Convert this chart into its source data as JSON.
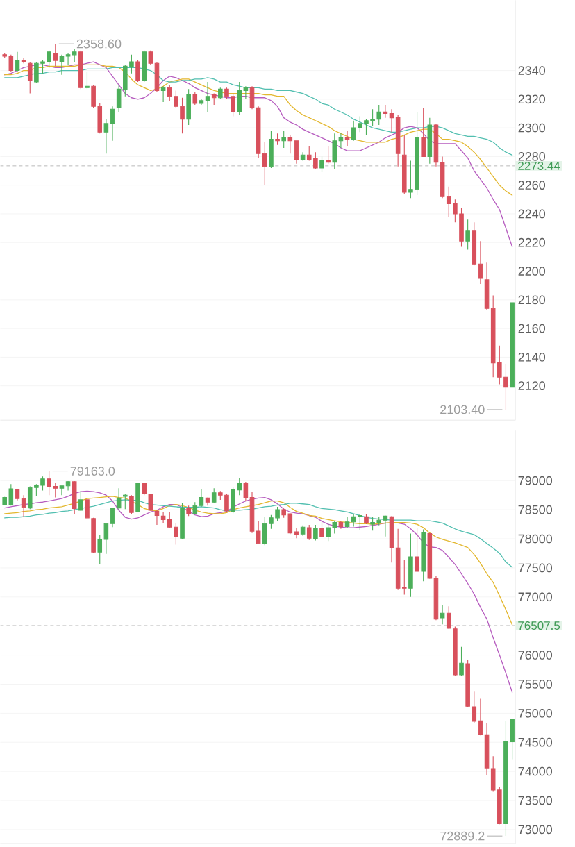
{
  "chart_data": [
    {
      "type": "candlestick",
      "categories": [
        null,
        null,
        null,
        null,
        null,
        null,
        null,
        null,
        null,
        null,
        null,
        null,
        null,
        null,
        null,
        null,
        null,
        null,
        null,
        null,
        null,
        null,
        null,
        null,
        null,
        null,
        null,
        null,
        null,
        null,
        null,
        null,
        null,
        null,
        null,
        null,
        null,
        null,
        null,
        null,
        null,
        null,
        null,
        null,
        null,
        null,
        null,
        null,
        null,
        null,
        null,
        null,
        null,
        null,
        null,
        null,
        null,
        null,
        null,
        null,
        null,
        null,
        null,
        null,
        null,
        null,
        null,
        null,
        null,
        null,
        null,
        null,
        null,
        null,
        null,
        null,
        null,
        null,
        null,
        null,
        null
      ],
      "ohlc": [
        [
          2351,
          2352,
          2349,
          2350
        ],
        [
          2350,
          2351,
          2339,
          2340
        ],
        [
          2340,
          2353,
          2339,
          2347
        ],
        [
          2347,
          2349,
          2345,
          2346
        ],
        [
          2345,
          2346,
          2324,
          2333
        ],
        [
          2332,
          2346,
          2331,
          2345
        ],
        [
          2345,
          2347,
          2338,
          2346
        ],
        [
          2346,
          2354,
          2342,
          2353
        ],
        [
          2352,
          2358.6,
          2343,
          2347
        ],
        [
          2346,
          2351,
          2337,
          2350
        ],
        [
          2350,
          2352,
          2344,
          2351
        ],
        [
          2351,
          2355,
          2346,
          2353
        ],
        [
          2353,
          2354,
          2327,
          2328
        ],
        [
          2328,
          2339,
          2327,
          2329
        ],
        [
          2329,
          2330,
          2314,
          2315
        ],
        [
          2315,
          2317,
          2296,
          2297
        ],
        [
          2297,
          2306,
          2282,
          2303
        ],
        [
          2303,
          2315,
          2291,
          2313
        ],
        [
          2314,
          2330,
          2311,
          2327
        ],
        [
          2327,
          2344,
          2322,
          2343
        ],
        [
          2343,
          2351,
          2338,
          2346
        ],
        [
          2346,
          2347,
          2332,
          2333
        ],
        [
          2333,
          2354,
          2332,
          2353
        ],
        [
          2353,
          2354,
          2344,
          2345
        ],
        [
          2345,
          2346,
          2325,
          2326
        ],
        [
          2326,
          2329,
          2318,
          2328
        ],
        [
          2328,
          2330,
          2319,
          2322
        ],
        [
          2322,
          2326,
          2314,
          2315
        ],
        [
          2315,
          2321,
          2296,
          2306
        ],
        [
          2306,
          2327,
          2302,
          2323
        ],
        [
          2323,
          2325,
          2316,
          2317
        ],
        [
          2317,
          2320,
          2316,
          2319
        ],
        [
          2319,
          2332,
          2311,
          2322
        ],
        [
          2323,
          2324,
          2316,
          2321
        ],
        [
          2321,
          2328,
          2320,
          2327
        ],
        [
          2327,
          2328,
          2320,
          2322
        ],
        [
          2322,
          2324,
          2308,
          2311
        ],
        [
          2311,
          2332,
          2309,
          2326
        ],
        [
          2326,
          2329,
          2320,
          2328
        ],
        [
          2328,
          2329,
          2313,
          2314
        ],
        [
          2314,
          2315,
          2279,
          2282
        ],
        [
          2282,
          2290,
          2260,
          2273
        ],
        [
          2273,
          2298,
          2272,
          2292
        ],
        [
          2292,
          2296,
          2288,
          2291
        ],
        [
          2291,
          2298,
          2286,
          2293
        ],
        [
          2293,
          2295,
          2282,
          2291
        ],
        [
          2291,
          2291,
          2275,
          2278
        ],
        [
          2278,
          2283,
          2277,
          2281
        ],
        [
          2281,
          2287,
          2277,
          2278
        ],
        [
          2279,
          2283,
          2271,
          2272
        ],
        [
          2272,
          2280,
          2269,
          2277
        ],
        [
          2277,
          2287,
          2275,
          2276
        ],
        [
          2276,
          2296,
          2271,
          2291
        ],
        [
          2291,
          2296,
          2286,
          2293
        ],
        [
          2293,
          2298,
          2287,
          2292
        ],
        [
          2292,
          2305,
          2291,
          2300
        ],
        [
          2300,
          2308,
          2297,
          2303
        ],
        [
          2303,
          2306,
          2295,
          2305
        ],
        [
          2305,
          2313,
          2301,
          2306
        ],
        [
          2306,
          2316,
          2302,
          2311
        ],
        [
          2311,
          2316,
          2307,
          2310
        ],
        [
          2310,
          2313,
          2297,
          2307
        ],
        [
          2307,
          2309,
          2273,
          2282
        ],
        [
          2281,
          2295,
          2254,
          2255
        ],
        [
          2255,
          2277,
          2251,
          2257
        ],
        [
          2257,
          2311,
          2253,
          2293
        ],
        [
          2293,
          2314,
          2280,
          2280
        ],
        [
          2280,
          2307,
          2275,
          2302
        ],
        [
          2302,
          2303,
          2273,
          2276
        ],
        [
          2276,
          2280,
          2251,
          2252
        ],
        [
          2252,
          2259,
          2238,
          2247
        ],
        [
          2247,
          2250,
          2234,
          2240
        ],
        [
          2240,
          2244,
          2217,
          2221
        ],
        [
          2221,
          2236,
          2215,
          2228
        ],
        [
          2228,
          2234,
          2204,
          2205
        ],
        [
          2205,
          2221,
          2191,
          2195
        ],
        [
          2194,
          2206,
          2173,
          2174
        ],
        [
          2174,
          2183,
          2126,
          2136
        ],
        [
          2136,
          2148,
          2121,
          2126
        ],
        [
          2126,
          2135,
          2103.4,
          2119
        ],
        [
          2119,
          2178,
          2119,
          2178
        ]
      ],
      "colors": [
        "#d8505c",
        "#d8505c",
        "#4caf5a",
        "#d8505c",
        "#d8505c",
        "#4caf5a",
        "#4caf5a",
        "#4caf5a",
        "#d8505c",
        "#4caf5a",
        "#4caf5a",
        "#4caf5a",
        "#d8505c",
        "#4caf5a",
        "#d8505c",
        "#d8505c",
        "#4caf5a",
        "#4caf5a",
        "#4caf5a",
        "#4caf5a",
        "#4caf5a",
        "#d8505c",
        "#4caf5a",
        "#d8505c",
        "#d8505c",
        "#4caf5a",
        "#d8505c",
        "#d8505c",
        "#d8505c",
        "#4caf5a",
        "#d8505c",
        "#4caf5a",
        "#4caf5a",
        "#d8505c",
        "#4caf5a",
        "#d8505c",
        "#d8505c",
        "#4caf5a",
        "#4caf5a",
        "#d8505c",
        "#d8505c",
        "#d8505c",
        "#4caf5a",
        "#d8505c",
        "#4caf5a",
        "#d8505c",
        "#d8505c",
        "#4caf5a",
        "#d8505c",
        "#d8505c",
        "#4caf5a",
        "#d8505c",
        "#4caf5a",
        "#4caf5a",
        "#d8505c",
        "#4caf5a",
        "#4caf5a",
        "#4caf5a",
        "#4caf5a",
        "#4caf5a",
        "#d8505c",
        "#d8505c",
        "#d8505c",
        "#d8505c",
        "#4caf5a",
        "#4caf5a",
        "#d8505c",
        "#4caf5a",
        "#d8505c",
        "#d8505c",
        "#d8505c",
        "#d8505c",
        "#d8505c",
        "#4caf5a",
        "#d8505c",
        "#d8505c",
        "#d8505c",
        "#d8505c",
        "#d8505c",
        "#d8505c",
        "#4caf5a"
      ],
      "series": [
        {
          "type": "line",
          "color": "#b65cbf",
          "values": [
            2337,
            2338,
            2340,
            2342,
            2343,
            2344,
            2344,
            2343,
            2342,
            2342,
            2343,
            2344,
            2344,
            2345,
            2346,
            2344,
            2342,
            2336,
            2330,
            2324,
            2321,
            2320,
            2321,
            2324,
            2328,
            2333,
            2336,
            2335,
            2333,
            2331,
            2328,
            2326,
            2324,
            2323,
            2322,
            2321,
            2321,
            2322,
            2322,
            2321,
            2321,
            2321,
            2319,
            2315,
            2307,
            2304,
            2302,
            2299,
            2297,
            2295,
            2293,
            2291,
            2289,
            2286,
            2284,
            2284,
            2284,
            2286,
            2288,
            2290,
            2293,
            2295,
            2297,
            2300,
            2301,
            2300,
            2296,
            2291,
            2289,
            2289,
            2289,
            2289,
            2284,
            2279,
            2270,
            2264,
            2258,
            2250,
            2243,
            2230,
            2217
          ]
        },
        {
          "type": "line",
          "color": "#e3b72e",
          "values": [
            2337,
            2337,
            2338,
            2340,
            2340,
            2342,
            2342,
            2343,
            2343,
            2343,
            2343,
            2343,
            2344,
            2344,
            2344,
            2344,
            2343,
            2343,
            2342,
            2339,
            2334,
            2330,
            2328,
            2326,
            2327,
            2329,
            2332,
            2333,
            2334,
            2334,
            2332,
            2330,
            2328,
            2326,
            2325,
            2324,
            2324,
            2324,
            2324,
            2324,
            2324,
            2323,
            2323,
            2322,
            2322,
            2316,
            2312,
            2309,
            2307,
            2305,
            2303,
            2301,
            2298,
            2296,
            2294,
            2292,
            2291,
            2290,
            2290,
            2290,
            2290,
            2292,
            2293,
            2295,
            2297,
            2298,
            2299,
            2299,
            2296,
            2292,
            2292,
            2291,
            2290,
            2287,
            2283,
            2278,
            2272,
            2266,
            2260,
            2256,
            2253
          ]
        },
        {
          "type": "line",
          "color": "#52bfb0",
          "values": [
            2335,
            2335,
            2335,
            2336,
            2337,
            2338,
            2338,
            2339,
            2339,
            2340,
            2340,
            2340,
            2340,
            2341,
            2341,
            2341,
            2341,
            2342,
            2342,
            2342,
            2342,
            2342,
            2341,
            2340,
            2337,
            2333,
            2332,
            2332,
            2333,
            2333,
            2334,
            2334,
            2335,
            2334,
            2332,
            2332,
            2330,
            2329,
            2328,
            2328,
            2328,
            2327,
            2327,
            2326,
            2326,
            2326,
            2325,
            2324,
            2322,
            2320,
            2317,
            2316,
            2313,
            2311,
            2309,
            2306,
            2304,
            2302,
            2300,
            2299,
            2298,
            2297,
            2297,
            2298,
            2299,
            2300,
            2300,
            2301,
            2301,
            2300,
            2298,
            2296,
            2295,
            2294,
            2294,
            2293,
            2292,
            2290,
            2286,
            2283,
            2281
          ]
        }
      ],
      "ylim": [
        2096,
        2389
      ],
      "yticks": [
        2120,
        2140,
        2160,
        2180,
        2200,
        2220,
        2240,
        2260,
        2280,
        2300,
        2320,
        2340
      ],
      "grid": "y",
      "tick_labels": "y",
      "ref_lines": [
        {
          "axis": "y",
          "value": 2273.44,
          "label": "2273.44",
          "color": "#a8a8a8",
          "line_style": "dashed"
        }
      ],
      "annotations": [
        "2358.60",
        "2103.40"
      ]
    },
    {
      "type": "candlestick",
      "categories": [
        null,
        null,
        null,
        null,
        null,
        null,
        null,
        null,
        null,
        null,
        null,
        null,
        null,
        null,
        null,
        null,
        null,
        null,
        null,
        null,
        null,
        null,
        null,
        null,
        null,
        null,
        null,
        null,
        null,
        null,
        null,
        null,
        null,
        null,
        null,
        null,
        null,
        null,
        null,
        null,
        null,
        null,
        null,
        null,
        null,
        null,
        null,
        null,
        null,
        null,
        null,
        null,
        null,
        null,
        null,
        null,
        null,
        null,
        null,
        null,
        null,
        null,
        null,
        null,
        null,
        null,
        null,
        null,
        null,
        null,
        null,
        null,
        null,
        null,
        null,
        null,
        null,
        null,
        null,
        null,
        null
      ],
      "ohlc": [
        [
          78590,
          78720,
          78580,
          78710
        ],
        [
          78590,
          78940,
          78570,
          78860
        ],
        [
          78850,
          78860,
          78660,
          78690
        ],
        [
          78690,
          78750,
          78380,
          78540
        ],
        [
          78530,
          78900,
          78510,
          78880
        ],
        [
          78880,
          78940,
          78730,
          78920
        ],
        [
          78920,
          79070,
          78830,
          79030
        ],
        [
          79030,
          79163,
          78750,
          78900
        ],
        [
          78900,
          78960,
          78710,
          78870
        ],
        [
          78870,
          78910,
          78750,
          78910
        ],
        [
          78910,
          78990,
          78830,
          78980
        ],
        [
          78980,
          78990,
          78430,
          78520
        ],
        [
          78490,
          78820,
          78480,
          78670
        ],
        [
          78670,
          78680,
          78340,
          78360
        ],
        [
          78350,
          78360,
          77750,
          77770
        ],
        [
          77770,
          78060,
          77560,
          77990
        ],
        [
          77990,
          78270,
          77740,
          78260
        ],
        [
          78260,
          78530,
          78200,
          78530
        ],
        [
          78530,
          78870,
          78500,
          78700
        ],
        [
          78730,
          78770,
          78510,
          78750
        ],
        [
          78730,
          78750,
          78430,
          78450
        ],
        [
          78470,
          78960,
          78460,
          78960
        ],
        [
          78950,
          78960,
          78750,
          78770
        ],
        [
          78770,
          78770,
          78480,
          78490
        ],
        [
          78470,
          78500,
          78240,
          78400
        ],
        [
          78390,
          78460,
          78270,
          78330
        ],
        [
          78330,
          78460,
          78180,
          78200
        ],
        [
          78200,
          78270,
          77900,
          78030
        ],
        [
          78010,
          78610,
          78000,
          78530
        ],
        [
          78520,
          78570,
          78390,
          78430
        ],
        [
          78430,
          78630,
          78420,
          78570
        ],
        [
          78570,
          78860,
          78550,
          78710
        ],
        [
          78700,
          78710,
          78570,
          78630
        ],
        [
          78630,
          78870,
          78610,
          78790
        ],
        [
          78790,
          78820,
          78670,
          78750
        ],
        [
          78750,
          78770,
          78450,
          78480
        ],
        [
          78460,
          78880,
          78440,
          78840
        ],
        [
          78840,
          79040,
          78750,
          78960
        ],
        [
          78960,
          78980,
          78650,
          78710
        ],
        [
          78710,
          78800,
          78100,
          78130
        ],
        [
          78130,
          78300,
          77910,
          77920
        ],
        [
          77910,
          78370,
          77890,
          78260
        ],
        [
          78260,
          78410,
          78170,
          78360
        ],
        [
          78360,
          78550,
          78300,
          78500
        ],
        [
          78500,
          78520,
          78360,
          78410
        ],
        [
          78430,
          78440,
          78080,
          78100
        ],
        [
          78120,
          78180,
          78010,
          78070
        ],
        [
          78080,
          78230,
          78050,
          78200
        ],
        [
          78190,
          78240,
          77980,
          78010
        ],
        [
          78000,
          78240,
          77970,
          78180
        ],
        [
          78180,
          78290,
          78030,
          78040
        ],
        [
          78040,
          78260,
          77960,
          78190
        ],
        [
          78190,
          78300,
          78090,
          78280
        ],
        [
          78280,
          78310,
          78170,
          78210
        ],
        [
          78210,
          78370,
          78190,
          78290
        ],
        [
          78290,
          78430,
          78210,
          78380
        ],
        [
          78380,
          78420,
          78150,
          78400
        ],
        [
          78380,
          78420,
          78250,
          78270
        ],
        [
          78250,
          78370,
          78140,
          78280
        ],
        [
          78280,
          78370,
          78230,
          78320
        ],
        [
          78320,
          78400,
          78040,
          78390
        ],
        [
          78380,
          78390,
          77590,
          77840
        ],
        [
          77840,
          78170,
          77120,
          77150
        ],
        [
          77160,
          77630,
          77040,
          77150
        ],
        [
          77150,
          78090,
          77000,
          77690
        ],
        [
          77690,
          78190,
          77430,
          77440
        ],
        [
          77440,
          78160,
          77270,
          78100
        ],
        [
          78090,
          78100,
          77310,
          77320
        ],
        [
          77320,
          77360,
          76600,
          76620
        ],
        [
          76640,
          76860,
          76530,
          76720
        ],
        [
          76720,
          76840,
          76450,
          76460
        ],
        [
          76450,
          76490,
          75640,
          75660
        ],
        [
          75660,
          76140,
          75640,
          75860
        ],
        [
          75850,
          75920,
          75110,
          75120
        ],
        [
          75110,
          75370,
          74830,
          74860
        ],
        [
          74870,
          75250,
          74620,
          74630
        ],
        [
          74630,
          74830,
          73930,
          74060
        ],
        [
          74050,
          74260,
          73650,
          73680
        ],
        [
          73680,
          73740,
          73090,
          73100
        ],
        [
          73100,
          74870,
          72889.2,
          74510
        ],
        [
          74510,
          74890,
          74210,
          74890
        ]
      ],
      "colors": [
        "#4caf5a",
        "#4caf5a",
        "#d8505c",
        "#d8505c",
        "#4caf5a",
        "#4caf5a",
        "#4caf5a",
        "#d8505c",
        "#d8505c",
        "#4caf5a",
        "#4caf5a",
        "#d8505c",
        "#4caf5a",
        "#d8505c",
        "#d8505c",
        "#4caf5a",
        "#4caf5a",
        "#4caf5a",
        "#4caf5a",
        "#4caf5a",
        "#d8505c",
        "#4caf5a",
        "#d8505c",
        "#d8505c",
        "#d8505c",
        "#d8505c",
        "#d8505c",
        "#d8505c",
        "#4caf5a",
        "#d8505c",
        "#4caf5a",
        "#4caf5a",
        "#d8505c",
        "#4caf5a",
        "#d8505c",
        "#d8505c",
        "#4caf5a",
        "#4caf5a",
        "#d8505c",
        "#d8505c",
        "#d8505c",
        "#4caf5a",
        "#4caf5a",
        "#4caf5a",
        "#d8505c",
        "#d8505c",
        "#d8505c",
        "#4caf5a",
        "#d8505c",
        "#4caf5a",
        "#d8505c",
        "#4caf5a",
        "#4caf5a",
        "#d8505c",
        "#4caf5a",
        "#4caf5a",
        "#4caf5a",
        "#d8505c",
        "#4caf5a",
        "#4caf5a",
        "#4caf5a",
        "#d8505c",
        "#d8505c",
        "#d8505c",
        "#4caf5a",
        "#d8505c",
        "#4caf5a",
        "#d8505c",
        "#d8505c",
        "#4caf5a",
        "#d8505c",
        "#d8505c",
        "#4caf5a",
        "#d8505c",
        "#d8505c",
        "#d8505c",
        "#d8505c",
        "#d8505c",
        "#d8505c",
        "#4caf5a",
        "#4caf5a"
      ],
      "series": [
        {
          "type": "line",
          "color": "#b65cbf",
          "values": [
            78530,
            78550,
            78570,
            78590,
            78600,
            78620,
            78630,
            78650,
            78670,
            78690,
            78730,
            78780,
            78810,
            78820,
            78810,
            78790,
            78750,
            78650,
            78490,
            78370,
            78340,
            78360,
            78410,
            78460,
            78490,
            78550,
            78590,
            78590,
            78540,
            78470,
            78410,
            78380,
            78390,
            78430,
            78450,
            78470,
            78540,
            78600,
            78650,
            78680,
            78700,
            78710,
            78670,
            78600,
            78510,
            78460,
            78440,
            78430,
            78400,
            78370,
            78300,
            78250,
            78220,
            78200,
            78190,
            78190,
            78200,
            78210,
            78230,
            78250,
            78270,
            null,
            78270,
            78250,
            78170,
            78070,
            77930,
            77860,
            77850,
            77800,
            77680,
            77560,
            77400,
            77230,
            77050,
            76820,
            76620,
            76300,
            76000,
            75690,
            75360
          ]
        },
        {
          "type": "line",
          "color": "#e3b72e",
          "values": [
            78430,
            78440,
            78450,
            78470,
            78480,
            78500,
            78510,
            78530,
            78540,
            78550,
            78580,
            78610,
            78650,
            78690,
            78700,
            78710,
            78720,
            78730,
            78710,
            78700,
            78640,
            78590,
            78520,
            78490,
            78480,
            78520,
            78570,
            78590,
            78570,
            78540,
            78490,
            78460,
            78440,
            78430,
            78430,
            78450,
            78500,
            78530,
            78550,
            78570,
            78590,
            78620,
            78650,
            78650,
            78620,
            78540,
            78470,
            78440,
            78400,
            78390,
            78350,
            78330,
            78310,
            78290,
            78280,
            78270,
            78260,
            78260,
            78250,
            78260,
            78270,
            78280,
            78280,
            78280,
            78270,
            78250,
            78190,
            78100,
            78030,
            77990,
            77960,
            77930,
            77890,
            77850,
            77730,
            77580,
            77400,
            77250,
            77020,
            76780,
            76520
          ]
        },
        {
          "type": "line",
          "color": "#52bfb0",
          "values": [
            78360,
            78370,
            78370,
            78380,
            78390,
            78410,
            78420,
            78440,
            78450,
            78470,
            78480,
            78500,
            78520,
            78540,
            78560,
            78590,
            78620,
            78650,
            78660,
            78670,
            78660,
            78660,
            78620,
            78590,
            78580,
            78570,
            78560,
            78550,
            78540,
            78540,
            78540,
            78550,
            78540,
            78530,
            78500,
            78480,
            78490,
            78490,
            78500,
            78510,
            78530,
            78550,
            78560,
            78580,
            78590,
            78610,
            78610,
            78600,
            78590,
            78550,
            78520,
            78510,
            78500,
            78480,
            78460,
            78430,
            78400,
            78370,
            78350,
            78340,
            78330,
            78320,
            78320,
            78320,
            78320,
            78310,
            78310,
            78310,
            78290,
            78270,
            78220,
            78170,
            78130,
            78100,
            78070,
            78000,
            77920,
            77840,
            77750,
            77600,
            77510
          ]
        }
      ],
      "ylim": [
        72760,
        79860
      ],
      "yticks": [
        73000,
        73500,
        74000,
        74500,
        75000,
        75500,
        76000,
        77000,
        77500,
        78000,
        78500,
        79000
      ],
      "grid": "y",
      "tick_labels": "y",
      "ref_lines": [
        {
          "axis": "y",
          "value": 76507.5,
          "label": "76507.5",
          "color": "#a8a8a8",
          "line_style": "dashed"
        }
      ],
      "annotations": [
        "79163.0",
        "72889.2"
      ]
    }
  ]
}
